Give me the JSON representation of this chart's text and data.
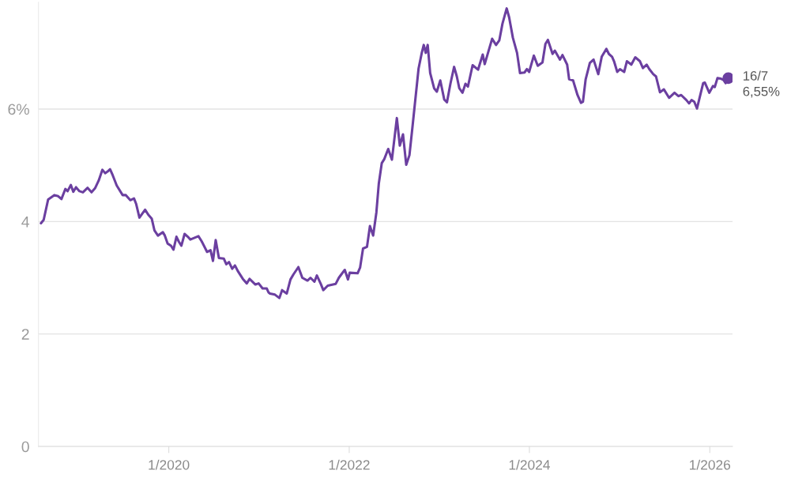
{
  "chart_data": {
    "type": "line",
    "x": [
      "2018-08-01",
      "2018-08-12",
      "2018-08-30",
      "2018-09-24",
      "2018-10-10",
      "2018-10-23",
      "2018-11-08",
      "2018-11-17",
      "2018-11-30",
      "2018-12-10",
      "2018-12-21",
      "2019-01-04",
      "2019-01-18",
      "2019-02-06",
      "2019-02-22",
      "2019-03-08",
      "2019-03-23",
      "2019-04-07",
      "2019-04-18",
      "2019-04-28",
      "2019-05-08",
      "2019-05-19",
      "2019-06-04",
      "2019-06-28",
      "2019-07-11",
      "2019-07-29",
      "2019-08-13",
      "2019-08-22",
      "2019-09-04",
      "2019-09-27",
      "2019-10-10",
      "2019-10-24",
      "2019-11-04",
      "2019-11-18",
      "2019-12-08",
      "2019-12-16",
      "2019-12-27",
      "2020-01-10",
      "2020-01-20",
      "2020-02-01",
      "2020-02-11",
      "2020-02-21",
      "2020-03-05",
      "2020-03-18",
      "2020-03-28",
      "2020-04-30",
      "2020-05-13",
      "2020-06-04",
      "2020-06-18",
      "2020-06-28",
      "2020-07-09",
      "2020-07-22",
      "2020-08-11",
      "2020-08-21",
      "2020-09-01",
      "2020-09-14",
      "2020-09-25",
      "2020-10-08",
      "2020-10-27",
      "2020-11-12",
      "2020-11-23",
      "2020-12-17",
      "2020-12-30",
      "2021-01-15",
      "2021-02-01",
      "2021-02-08",
      "2021-02-14",
      "2021-03-06",
      "2021-03-24",
      "2021-04-04",
      "2021-04-23",
      "2021-05-08",
      "2021-05-20",
      "2021-06-09",
      "2021-06-25",
      "2021-07-16",
      "2021-07-28",
      "2021-08-13",
      "2021-08-23",
      "2021-09-08",
      "2021-09-18",
      "2021-10-06",
      "2021-11-07",
      "2021-11-20",
      "2021-11-30",
      "2021-12-14",
      "2021-12-27",
      "2022-01-03",
      "2022-02-04",
      "2022-02-14",
      "2022-02-26",
      "2022-03-14",
      "2022-03-26",
      "2022-04-08",
      "2022-04-21",
      "2022-05-01",
      "2022-05-13",
      "2022-05-23",
      "2022-06-08",
      "2022-06-23",
      "2022-07-13",
      "2022-07-25",
      "2022-08-07",
      "2022-08-20",
      "2022-09-02",
      "2022-09-14",
      "2022-10-09",
      "2022-10-22",
      "2022-10-30",
      "2022-11-07",
      "2022-11-15",
      "2022-11-25",
      "2022-12-11",
      "2022-12-22",
      "2023-01-05",
      "2023-01-21",
      "2023-02-01",
      "2023-02-15",
      "2023-03-02",
      "2023-03-13",
      "2023-03-23",
      "2023-04-05",
      "2023-04-17",
      "2023-04-27",
      "2023-05-16",
      "2023-06-07",
      "2023-06-26",
      "2023-07-04",
      "2023-08-03",
      "2023-08-19",
      "2023-09-01",
      "2023-09-14",
      "2023-10-01",
      "2023-10-11",
      "2023-10-26",
      "2023-11-12",
      "2023-11-24",
      "2023-12-12",
      "2023-12-22",
      "2023-12-31",
      "2024-01-19",
      "2024-02-04",
      "2024-02-23",
      "2024-03-06",
      "2024-03-16",
      "2024-04-04",
      "2024-04-13",
      "2024-05-04",
      "2024-05-14",
      "2024-06-02",
      "2024-06-10",
      "2024-06-26",
      "2024-07-14",
      "2024-07-28",
      "2024-08-05",
      "2024-08-16",
      "2024-09-02",
      "2024-09-17",
      "2024-10-06",
      "2024-10-20",
      "2024-11-08",
      "2024-11-18",
      "2024-12-01",
      "2024-12-09",
      "2024-12-22",
      "2025-01-02",
      "2025-01-19",
      "2025-01-30",
      "2025-02-17",
      "2025-03-05",
      "2025-03-24",
      "2025-04-05",
      "2025-04-20",
      "2025-05-01",
      "2025-05-17",
      "2025-05-28",
      "2025-06-13",
      "2025-06-29",
      "2025-07-20",
      "2025-08-11",
      "2025-08-27",
      "2025-09-07",
      "2025-09-28",
      "2025-10-09",
      "2025-10-19",
      "2025-10-30",
      "2025-11-10",
      "2025-12-05",
      "2025-12-12",
      "2025-12-30",
      "2026-01-14",
      "2026-01-21",
      "2026-02-01",
      "2026-02-15",
      "2026-02-25",
      "2026-03-06",
      "2026-03-17"
    ],
    "series": [
      {
        "color": "#6b3fa0",
        "values": [
          3.97,
          4.03,
          4.39,
          4.47,
          4.45,
          4.4,
          4.58,
          4.54,
          4.65,
          4.53,
          4.61,
          4.54,
          4.52,
          4.6,
          4.52,
          4.59,
          4.73,
          4.92,
          4.86,
          4.89,
          4.93,
          4.82,
          4.64,
          4.47,
          4.47,
          4.38,
          4.41,
          4.31,
          4.07,
          4.21,
          4.12,
          4.05,
          3.84,
          3.75,
          3.81,
          3.75,
          3.61,
          3.57,
          3.5,
          3.73,
          3.64,
          3.57,
          3.78,
          3.73,
          3.68,
          3.74,
          3.65,
          3.46,
          3.49,
          3.3,
          3.67,
          3.35,
          3.34,
          3.24,
          3.28,
          3.16,
          3.22,
          3.11,
          2.98,
          2.9,
          2.98,
          2.88,
          2.9,
          2.81,
          2.81,
          2.74,
          2.72,
          2.7,
          2.64,
          2.78,
          2.72,
          2.97,
          3.06,
          3.19,
          3.0,
          2.95,
          3.0,
          2.93,
          3.04,
          2.89,
          2.78,
          2.86,
          2.89,
          3.0,
          3.06,
          3.14,
          2.97,
          3.09,
          3.08,
          3.18,
          3.52,
          3.55,
          3.92,
          3.75,
          4.16,
          4.68,
          5.04,
          5.11,
          5.29,
          5.1,
          5.84,
          5.35,
          5.55,
          5.01,
          5.18,
          5.67,
          6.72,
          7.0,
          7.14,
          7.0,
          7.14,
          6.64,
          6.37,
          6.31,
          6.51,
          6.17,
          6.12,
          6.45,
          6.75,
          6.58,
          6.37,
          6.29,
          6.45,
          6.4,
          6.78,
          6.7,
          6.97,
          6.8,
          7.25,
          7.14,
          7.22,
          7.52,
          7.79,
          7.63,
          7.27,
          7.0,
          6.64,
          6.65,
          6.71,
          6.66,
          6.95,
          6.77,
          6.83,
          7.16,
          7.23,
          6.98,
          7.04,
          6.88,
          6.96,
          6.79,
          6.53,
          6.51,
          6.25,
          6.11,
          6.13,
          6.53,
          6.82,
          6.88,
          6.62,
          6.93,
          7.07,
          6.98,
          6.93,
          6.85,
          6.66,
          6.71,
          6.66,
          6.85,
          6.79,
          6.92,
          6.85,
          6.73,
          6.79,
          6.71,
          6.62,
          6.58,
          6.3,
          6.35,
          6.2,
          6.29,
          6.23,
          6.25,
          6.16,
          6.1,
          6.16,
          6.13,
          6.01,
          6.46,
          6.47,
          6.29,
          6.41,
          6.39,
          6.55,
          6.54,
          6.52,
          6.46,
          6.55
        ]
      },
      {
        "type": "scatter",
        "color": "#6b3fa0",
        "x": [
          "2026-03-17"
        ],
        "values": [
          6.55
        ]
      }
    ],
    "annotations": [
      {
        "text": "16/7\n6,55%",
        "x": "2026-03-17",
        "y": 6.55
      }
    ],
    "xlim": [
      "2018-07-22",
      "2026-04-03"
    ],
    "xticks": [
      {
        "value": "2020-01-01",
        "label": "1/2020"
      },
      {
        "value": "2022-01-01",
        "label": "1/2022"
      },
      {
        "value": "2024-01-01",
        "label": "1/2024"
      },
      {
        "value": "2026-01-01",
        "label": "1/2026"
      }
    ],
    "ylim": [
      0,
      7.9
    ],
    "yticks": [
      0,
      2,
      4,
      {
        "value": 6,
        "label": "6%"
      }
    ],
    "grid": "y",
    "line_style": "solid"
  }
}
